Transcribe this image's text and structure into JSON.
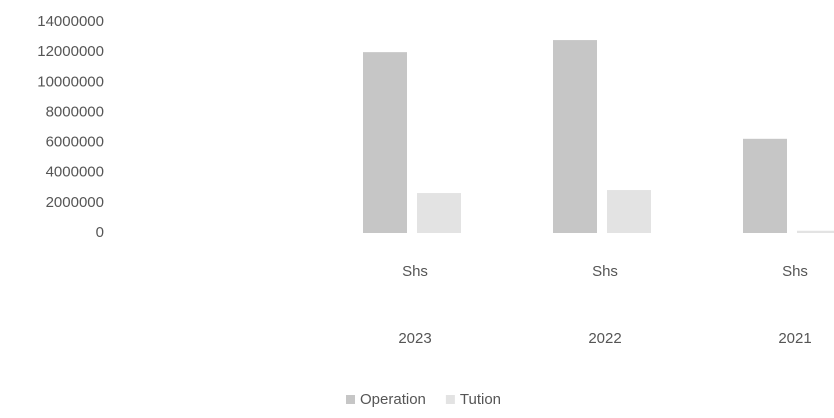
{
  "chart_data": {
    "type": "bar",
    "categories": [
      [
        "Shs",
        "2023"
      ],
      [
        "Shs",
        "2022"
      ],
      [
        "Shs",
        "2021"
      ]
    ],
    "series": [
      {
        "name": "Operation",
        "color": "#c6c6c6",
        "values": [
          12000000,
          12800000,
          6250000
        ]
      },
      {
        "name": "Tution",
        "color": "#e3e3e3",
        "values": [
          2650000,
          2850000,
          150000
        ]
      }
    ],
    "ylim": [
      0,
      14000000
    ],
    "yticks": [
      0,
      2000000,
      4000000,
      6000000,
      8000000,
      10000000,
      12000000,
      14000000
    ],
    "legend": "bottom"
  }
}
